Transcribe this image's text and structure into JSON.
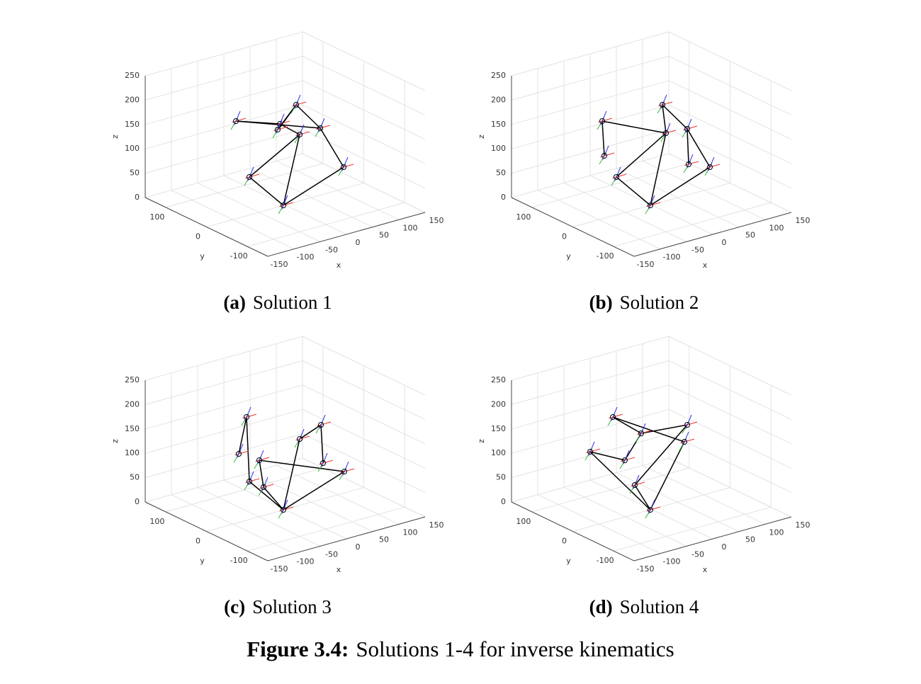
{
  "figure": {
    "subfigures": [
      {
        "label": "(a)",
        "caption": "Solution 1",
        "axes": {
          "xlabel": "x",
          "ylabel": "y",
          "zlabel": "z",
          "xlim": [
            -150,
            150
          ],
          "ylim": [
            -150,
            150
          ],
          "zlim": [
            0,
            250
          ],
          "xticks": [
            -150,
            -100,
            -50,
            0,
            50,
            100,
            150
          ],
          "yticks": [
            -100,
            0,
            100
          ],
          "zticks": [
            0,
            50,
            100,
            150,
            200,
            250
          ]
        }
      },
      {
        "label": "(b)",
        "caption": "Solution 2",
        "axes": {
          "xlabel": "x",
          "ylabel": "y",
          "zlabel": "z",
          "xlim": [
            -150,
            150
          ],
          "ylim": [
            -150,
            150
          ],
          "zlim": [
            0,
            250
          ],
          "xticks": [
            -150,
            -100,
            -50,
            0,
            50,
            100,
            150
          ],
          "yticks": [
            -100,
            0,
            100
          ],
          "zticks": [
            0,
            50,
            100,
            150,
            200,
            250
          ]
        }
      },
      {
        "label": "(c)",
        "caption": "Solution 3",
        "axes": {
          "xlabel": "x",
          "ylabel": "y",
          "zlabel": "z",
          "xlim": [
            -150,
            150
          ],
          "ylim": [
            -150,
            150
          ],
          "zlim": [
            0,
            250
          ],
          "xticks": [
            -150,
            -100,
            -50,
            0,
            50,
            100,
            150
          ],
          "yticks": [
            -100,
            0,
            100
          ],
          "zticks": [
            0,
            50,
            100,
            150,
            200,
            250
          ]
        }
      },
      {
        "label": "(d)",
        "caption": "Solution 4",
        "axes": {
          "xlabel": "x",
          "ylabel": "y",
          "zlabel": "z",
          "xlim": [
            -150,
            150
          ],
          "ylim": [
            -150,
            150
          ],
          "zlim": [
            0,
            250
          ],
          "xticks": [
            -150,
            -100,
            -50,
            0,
            50,
            100,
            150
          ],
          "yticks": [
            -100,
            0,
            100
          ],
          "zticks": [
            0,
            50,
            100,
            150,
            200,
            250
          ]
        }
      }
    ],
    "caption": {
      "label": "Figure 3.4:",
      "text": "Solutions 1-4 for inverse kinematics"
    }
  }
}
